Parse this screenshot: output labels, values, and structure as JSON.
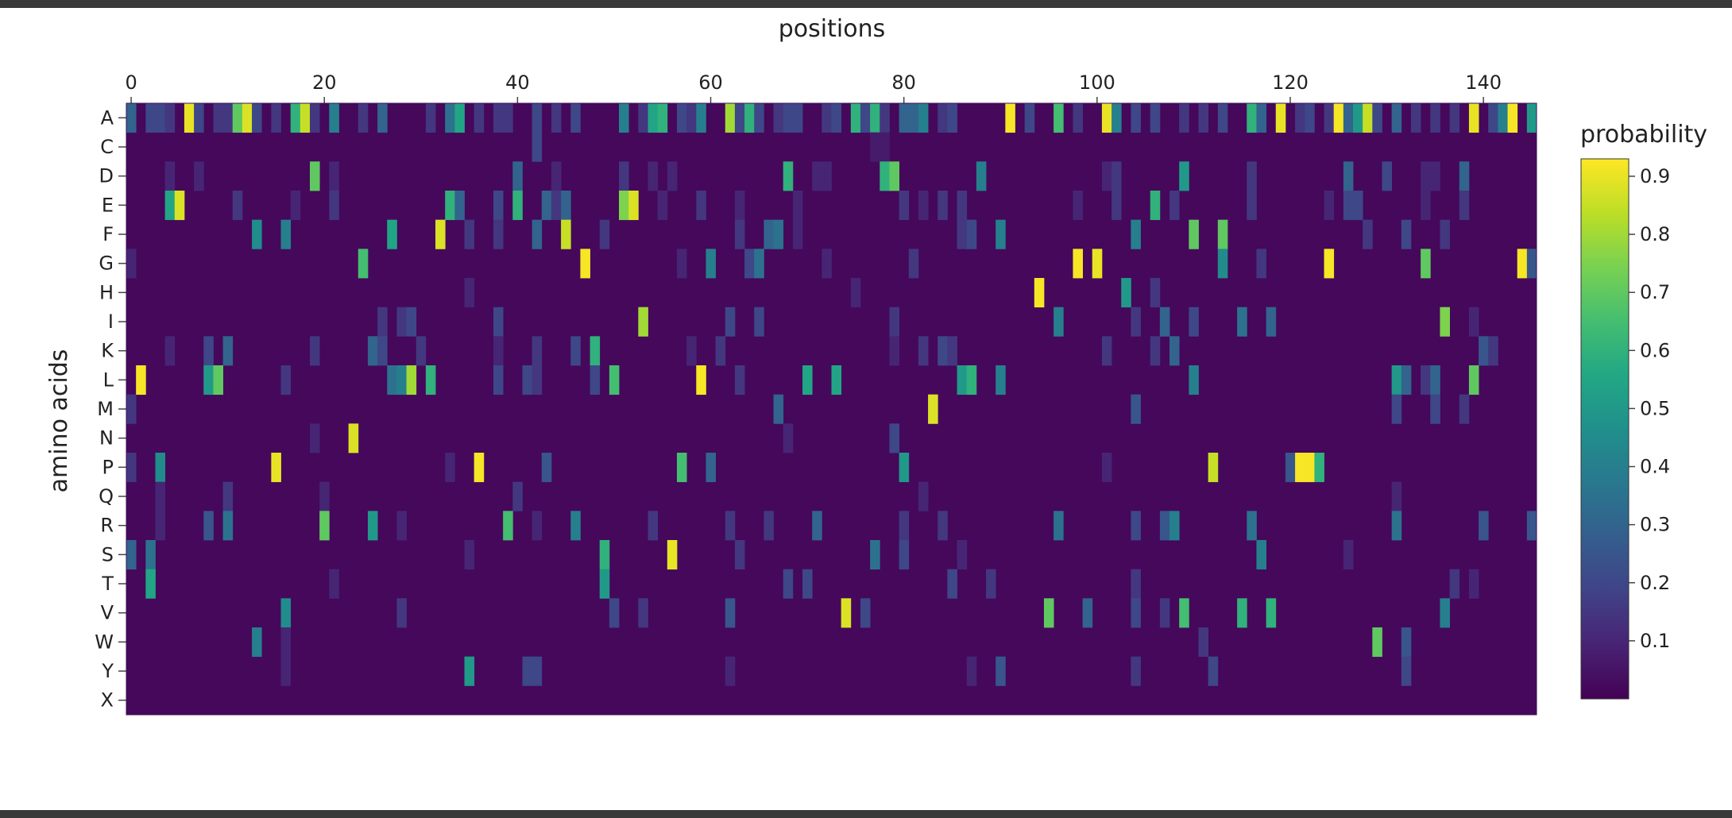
{
  "chart_data": {
    "type": "heatmap",
    "title": "",
    "xlabel": "positions",
    "ylabel": "amino acids",
    "x_axis_position": "top",
    "x_range": [
      0,
      145
    ],
    "x_ticks": [
      0,
      20,
      40,
      60,
      80,
      100,
      120,
      140
    ],
    "y_categories": [
      "A",
      "C",
      "D",
      "E",
      "F",
      "G",
      "H",
      "I",
      "K",
      "L",
      "M",
      "N",
      "P",
      "Q",
      "R",
      "S",
      "T",
      "V",
      "W",
      "Y",
      "X"
    ],
    "n_positions": 146,
    "colorscale": "viridis",
    "colorbar": {
      "title": "probability",
      "range": [
        0.0,
        0.93
      ],
      "ticks": [
        "0.1",
        "0.2",
        "0.3",
        "0.4",
        "0.5",
        "0.6",
        "0.7",
        "0.8",
        "0.9"
      ],
      "tick_values": [
        0.1,
        0.2,
        0.3,
        0.4,
        0.5,
        0.6,
        0.7,
        0.8,
        0.9
      ]
    },
    "background_value": 0.02,
    "values": {
      "A": {
        "0": 0.3,
        "2": 0.2,
        "3": 0.2,
        "4": 0.15,
        "6": 0.9,
        "7": 0.2,
        "9": 0.15,
        "10": 0.15,
        "11": 0.7,
        "12": 0.88,
        "13": 0.2,
        "15": 0.15,
        "17": 0.6,
        "18": 0.85,
        "19": 0.15,
        "21": 0.4,
        "24": 0.15,
        "26": 0.3,
        "31": 0.15,
        "33": 0.35,
        "34": 0.55,
        "36": 0.15,
        "38": 0.15,
        "39": 0.15,
        "42": 0.2,
        "44": 0.15,
        "46": 0.2,
        "51": 0.4,
        "53": 0.15,
        "54": 0.55,
        "55": 0.6,
        "57": 0.2,
        "58": 0.15,
        "59": 0.4,
        "62": 0.8,
        "63": 0.2,
        "64": 0.6,
        "65": 0.2,
        "67": 0.15,
        "68": 0.2,
        "69": 0.2,
        "72": 0.15,
        "73": 0.2,
        "75": 0.6,
        "76": 0.2,
        "77": 0.6,
        "78": 0.15,
        "80": 0.3,
        "81": 0.3,
        "82": 0.4,
        "84": 0.15,
        "85": 0.2,
        "91": 0.92,
        "93": 0.2,
        "96": 0.65,
        "98": 0.15,
        "101": 0.9,
        "102": 0.4,
        "104": 0.2,
        "106": 0.2,
        "109": 0.15,
        "111": 0.15,
        "113": 0.2,
        "116": 0.6,
        "117": 0.3,
        "119": 0.9,
        "121": 0.15,
        "122": 0.2,
        "124": 0.15,
        "125": 0.92,
        "126": 0.3,
        "127": 0.5,
        "128": 0.85,
        "129": 0.2,
        "131": 0.3,
        "133": 0.15,
        "135": 0.15,
        "137": 0.15,
        "139": 0.9,
        "141": 0.2,
        "142": 0.4,
        "143": 0.92,
        "145": 0.5
      },
      "C": {
        "42": 0.2,
        "77": 0.07,
        "78": 0.07
      },
      "D": {
        "4": 0.1,
        "7": 0.1,
        "19": 0.7,
        "21": 0.1,
        "40": 0.3,
        "44": 0.1,
        "51": 0.15,
        "54": 0.1,
        "56": 0.1,
        "68": 0.6,
        "71": 0.1,
        "72": 0.1,
        "78": 0.6,
        "79": 0.7,
        "88": 0.4,
        "101": 0.1,
        "102": 0.15,
        "109": 0.5,
        "116": 0.15,
        "126": 0.3,
        "130": 0.2,
        "134": 0.1,
        "135": 0.1,
        "138": 0.3
      },
      "E": {
        "4": 0.55,
        "5": 0.88,
        "11": 0.15,
        "17": 0.1,
        "21": 0.15,
        "33": 0.6,
        "34": 0.3,
        "38": 0.2,
        "40": 0.6,
        "43": 0.3,
        "44": 0.15,
        "45": 0.3,
        "51": 0.75,
        "52": 0.88,
        "55": 0.1,
        "59": 0.15,
        "63": 0.1,
        "69": 0.1,
        "80": 0.15,
        "82": 0.1,
        "84": 0.15,
        "86": 0.15,
        "98": 0.1,
        "102": 0.15,
        "106": 0.6,
        "108": 0.15,
        "116": 0.15,
        "124": 0.1,
        "126": 0.2,
        "127": 0.2,
        "134": 0.1,
        "138": 0.15
      },
      "F": {
        "13": 0.45,
        "16": 0.4,
        "27": 0.55,
        "32": 0.88,
        "35": 0.15,
        "38": 0.15,
        "42": 0.3,
        "45": 0.85,
        "49": 0.15,
        "63": 0.15,
        "66": 0.3,
        "67": 0.35,
        "69": 0.1,
        "86": 0.15,
        "87": 0.2,
        "90": 0.4,
        "104": 0.4,
        "110": 0.7,
        "113": 0.7,
        "128": 0.15,
        "132": 0.2,
        "136": 0.15
      },
      "G": {
        "0": 0.1,
        "24": 0.65,
        "47": 0.92,
        "57": 0.1,
        "60": 0.4,
        "64": 0.2,
        "65": 0.35,
        "72": 0.1,
        "81": 0.15,
        "98": 0.92,
        "100": 0.9,
        "113": 0.45,
        "117": 0.15,
        "124": 0.92,
        "134": 0.7,
        "144": 0.92,
        "145": 0.25
      },
      "H": {
        "94": 0.92,
        "103": 0.5,
        "106": 0.15,
        "75": 0.1,
        "35": 0.1
      },
      "I": {
        "26": 0.15,
        "28": 0.15,
        "29": 0.2,
        "38": 0.2,
        "53": 0.8,
        "62": 0.2,
        "65": 0.2,
        "79": 0.15,
        "96": 0.4,
        "104": 0.15,
        "107": 0.3,
        "110": 0.2,
        "115": 0.35,
        "118": 0.3,
        "136": 0.75,
        "139": 0.1
      },
      "K": {
        "4": 0.1,
        "8": 0.2,
        "10": 0.3,
        "19": 0.15,
        "25": 0.3,
        "26": 0.2,
        "30": 0.15,
        "38": 0.1,
        "42": 0.15,
        "46": 0.2,
        "48": 0.6,
        "58": 0.1,
        "61": 0.15,
        "79": 0.1,
        "82": 0.15,
        "84": 0.2,
        "85": 0.15,
        "101": 0.15,
        "106": 0.15,
        "108": 0.3,
        "140": 0.25,
        "141": 0.15
      },
      "L": {
        "1": 0.92,
        "8": 0.5,
        "9": 0.7,
        "16": 0.15,
        "27": 0.35,
        "28": 0.4,
        "29": 0.8,
        "31": 0.6,
        "38": 0.2,
        "41": 0.2,
        "42": 0.15,
        "48": 0.2,
        "50": 0.65,
        "59": 0.92,
        "63": 0.15,
        "70": 0.55,
        "73": 0.55,
        "86": 0.5,
        "87": 0.6,
        "90": 0.4,
        "110": 0.4,
        "131": 0.5,
        "132": 0.3,
        "134": 0.15,
        "135": 0.3,
        "139": 0.7
      },
      "M": {
        "0": 0.15,
        "67": 0.3,
        "83": 0.88,
        "104": 0.25,
        "131": 0.2,
        "135": 0.2,
        "138": 0.15
      },
      "N": {
        "23": 0.88,
        "19": 0.1,
        "79": 0.2,
        "68": 0.1
      },
      "P": {
        "0": 0.15,
        "3": 0.45,
        "15": 0.9,
        "36": 0.92,
        "43": 0.25,
        "57": 0.65,
        "60": 0.3,
        "80": 0.5,
        "112": 0.85,
        "120": 0.25,
        "121": 0.92,
        "122": 0.92,
        "123": 0.6,
        "33": 0.1,
        "101": 0.1
      },
      "Q": {
        "3": 0.1,
        "10": 0.15,
        "20": 0.1,
        "40": 0.15,
        "82": 0.1,
        "131": 0.1
      },
      "R": {
        "3": 0.1,
        "8": 0.25,
        "10": 0.35,
        "20": 0.7,
        "25": 0.5,
        "28": 0.1,
        "39": 0.65,
        "42": 0.1,
        "46": 0.4,
        "54": 0.15,
        "62": 0.15,
        "66": 0.15,
        "71": 0.3,
        "80": 0.15,
        "84": 0.15,
        "96": 0.35,
        "104": 0.2,
        "107": 0.25,
        "108": 0.4,
        "116": 0.35,
        "131": 0.35,
        "140": 0.25,
        "145": 0.25
      },
      "S": {
        "0": 0.3,
        "2": 0.35,
        "35": 0.1,
        "49": 0.6,
        "56": 0.9,
        "63": 0.15,
        "77": 0.35,
        "80": 0.2,
        "117": 0.4,
        "86": 0.1,
        "126": 0.1
      },
      "T": {
        "2": 0.55,
        "21": 0.1,
        "49": 0.5,
        "68": 0.2,
        "70": 0.2,
        "85": 0.2,
        "89": 0.15,
        "104": 0.15,
        "137": 0.15,
        "139": 0.1
      },
      "V": {
        "16": 0.45,
        "28": 0.15,
        "50": 0.2,
        "53": 0.15,
        "62": 0.25,
        "74": 0.88,
        "76": 0.2,
        "95": 0.7,
        "99": 0.3,
        "104": 0.2,
        "107": 0.15,
        "109": 0.65,
        "115": 0.6,
        "118": 0.6,
        "136": 0.4
      },
      "W": {
        "13": 0.4,
        "16": 0.1,
        "111": 0.15,
        "129": 0.7,
        "132": 0.25
      },
      "Y": {
        "16": 0.1,
        "35": 0.5,
        "41": 0.2,
        "42": 0.2,
        "62": 0.1,
        "87": 0.1,
        "90": 0.25,
        "104": 0.15,
        "112": 0.2,
        "132": 0.2
      },
      "X": {}
    }
  }
}
